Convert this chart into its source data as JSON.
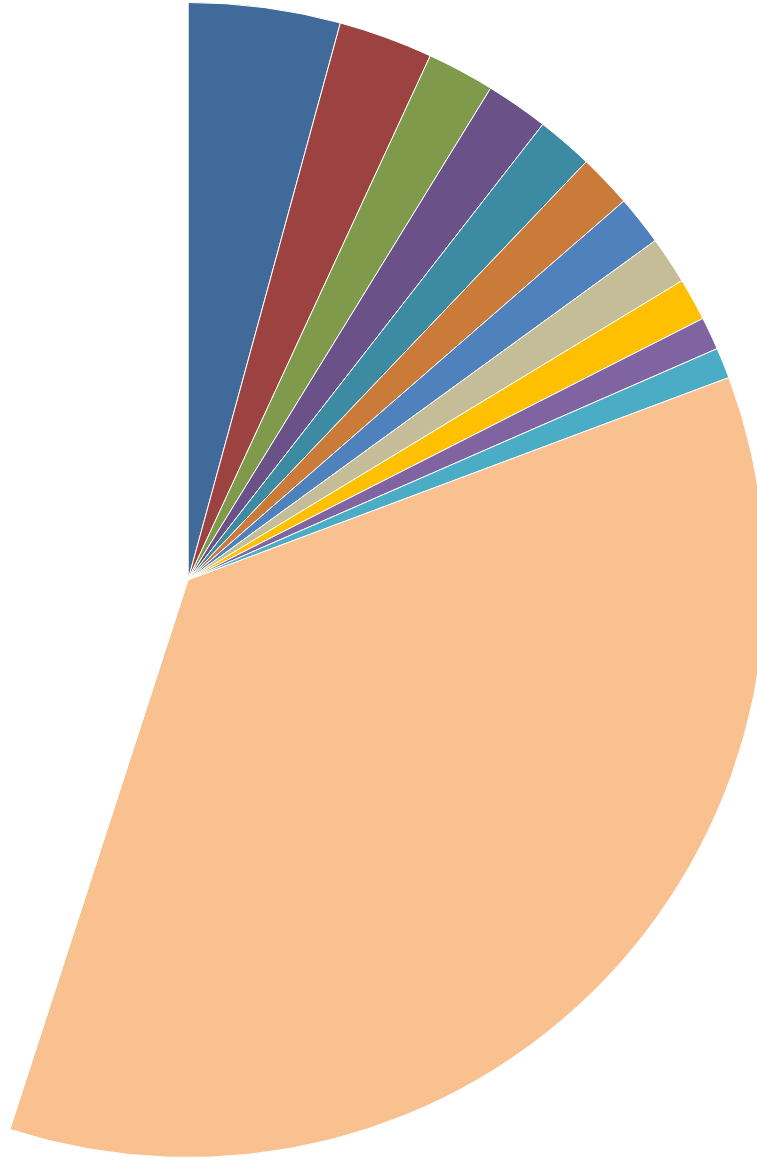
{
  "chart_data": {
    "type": "pie",
    "categories": [
      null,
      null,
      null,
      null,
      null,
      null,
      null,
      null,
      null,
      null,
      null,
      null,
      null
    ],
    "values": [
      4.25,
      2.64,
      1.89,
      1.75,
      1.58,
      1.5,
      1.39,
      1.33,
      1.19,
      0.92,
      0.86,
      35.69,
      45.01
    ],
    "colors": [
      "#406a99",
      "#9c4240",
      "#7f9a4a",
      "#6a5289",
      "#3c8ba3",
      "#cb7b39",
      "#4f81bd",
      "#c4bd97",
      "#fec000",
      "#8064a2",
      "#4bacc6",
      "#f9c090",
      "#ffffff"
    ],
    "legend": false
  }
}
